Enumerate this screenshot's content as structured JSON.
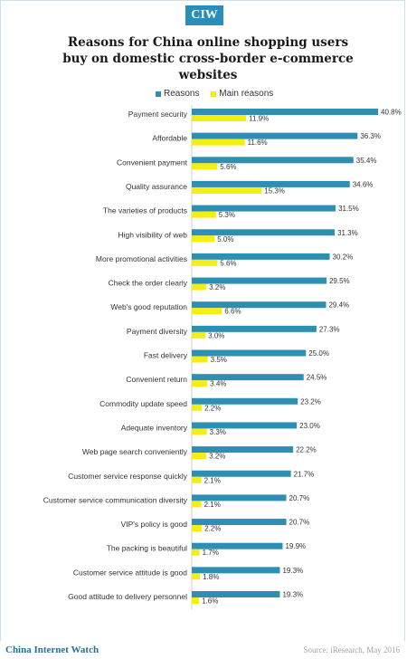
{
  "badge": "CIW",
  "title": "Reasons for China online shopping users buy on domestic cross-border e-commerce websites",
  "footer": {
    "brand": "China Internet Watch",
    "source": "Source: iResearch, May 2016"
  },
  "colors": {
    "reasons": "#2f8fb3",
    "main_reasons": "#f5ee12",
    "badge": "#2a8fb8"
  },
  "chart_data": {
    "type": "bar",
    "orientation": "horizontal",
    "categories": [
      "Payment security",
      "Affordable",
      "Convenient payment",
      "Quality assurance",
      "The varieties of products",
      "High visibility of web",
      "More promotional activities",
      "Check the order clearly",
      "Web's good reputation",
      "Payment diversity",
      "Fast delivery",
      "Convenient return",
      "Commodity update speed",
      "Adequate inventory",
      "Web page search conveniently",
      "Customer service response quickly",
      "Customer service communication diversity",
      "VIP's policy is good",
      "The packing is beautiful",
      "Customer service attitude is good",
      "Good attitude to delivery personnel"
    ],
    "series": [
      {
        "name": "Reasons",
        "color": "#2f8fb3",
        "values": [
          40.8,
          36.3,
          35.4,
          34.6,
          31.5,
          31.3,
          30.2,
          29.5,
          29.4,
          27.3,
          25.0,
          24.5,
          23.2,
          23.0,
          22.2,
          21.7,
          20.7,
          20.7,
          19.9,
          19.3,
          19.3
        ],
        "labels": [
          "40.8%",
          "36.3%",
          "35.4%",
          "34.6%",
          "31.5%",
          "31.3%",
          "30.2%",
          "29.5%",
          "29.4%",
          "27.3%",
          "25.0%",
          "24.5%",
          "23.2%",
          "23.0%",
          "22.2%",
          "21.7%",
          "20.7%",
          "20.7%",
          "19.9%",
          "19.3%",
          "19.3%"
        ]
      },
      {
        "name": "Main reasons",
        "color": "#f5ee12",
        "values": [
          11.9,
          11.6,
          5.6,
          15.3,
          5.3,
          5.0,
          5.6,
          3.2,
          6.6,
          3.0,
          3.5,
          3.4,
          2.2,
          3.3,
          3.2,
          2.1,
          2.1,
          2.2,
          1.7,
          1.8,
          1.6
        ],
        "labels": [
          "11.9%",
          "11.6%",
          "5.6%",
          "15.3%",
          "5.3%",
          "5.0%",
          "5.6%",
          "3.2%",
          "6.6%",
          "3.0%",
          "3.5%",
          "3.4%",
          "2.2%",
          "3.3%",
          "3.2%",
          "2.1%",
          "2.1%",
          "2.2%",
          "1.7%",
          "1.8%",
          "1.6%"
        ]
      }
    ],
    "legend_position": "top",
    "grid": false,
    "xlim": [
      0,
      45
    ]
  }
}
